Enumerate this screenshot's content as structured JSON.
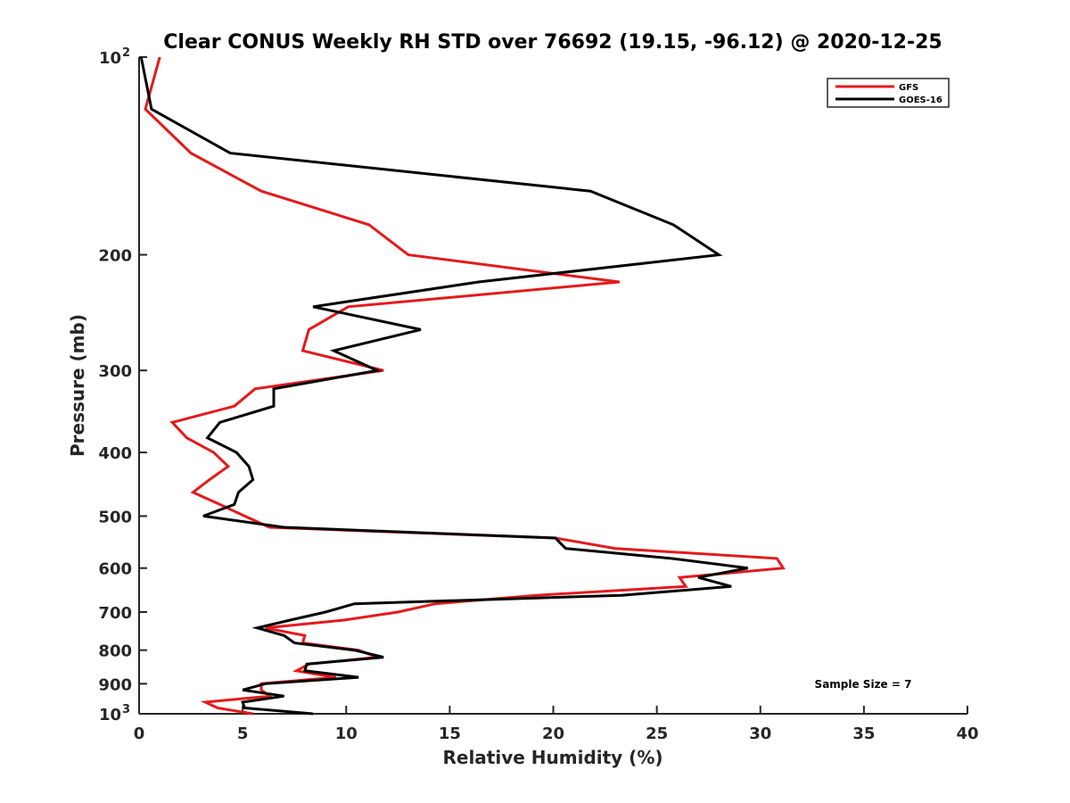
{
  "chart_data": {
    "type": "line",
    "title": "Clear CONUS Weekly RH STD over 76692 (19.15, -96.12) @ 2020-12-25",
    "xlabel": "Relative Humidity (%)",
    "ylabel": "Pressure (mb)",
    "xlim": [
      0,
      40
    ],
    "ylim": [
      100,
      1000
    ],
    "y_scale": "log",
    "y_reversed": true,
    "x_ticks": [
      0,
      5,
      10,
      15,
      20,
      25,
      30,
      35,
      40
    ],
    "x_tick_labels": [
      "0",
      "5",
      "10",
      "15",
      "20",
      "25",
      "30",
      "35",
      "40"
    ],
    "y_ticks": [
      100,
      200,
      300,
      400,
      500,
      600,
      700,
      800,
      900,
      1000
    ],
    "y_tick_labels": [
      "10",
      "200",
      "300",
      "400",
      "500",
      "600",
      "700",
      "800",
      "900",
      "10"
    ],
    "y_tick_exponents": [
      "2",
      "",
      "",
      "",
      "",
      "",
      "",
      "",
      "",
      "3"
    ],
    "grid": false,
    "legend_position": "top-right",
    "annotation": "Sample Size = 7",
    "pressure_levels": [
      100,
      120,
      140,
      160,
      180,
      200,
      220,
      240,
      260,
      280,
      300,
      320,
      340,
      360,
      380,
      400,
      420,
      440,
      460,
      480,
      500,
      520,
      540,
      560,
      580,
      600,
      620,
      640,
      660,
      680,
      700,
      720,
      740,
      760,
      780,
      800,
      820,
      840,
      860,
      880,
      900,
      920,
      940,
      960,
      980,
      1000
    ],
    "series": [
      {
        "name": "GFS",
        "color": "#e41a1c",
        "values": [
          1.0,
          0.3,
          2.5,
          5.9,
          11.1,
          13.0,
          23.2,
          10.1,
          8.2,
          7.9,
          11.8,
          5.6,
          4.6,
          1.6,
          2.3,
          3.6,
          4.3,
          3.4,
          2.6,
          3.9,
          5.1,
          6.3,
          20.1,
          23.0,
          30.8,
          31.1,
          26.1,
          26.4,
          19.2,
          14.3,
          12.5,
          9.9,
          6.1,
          8.0,
          7.9,
          10.6,
          11.5,
          8.2,
          7.6,
          9.5,
          5.9,
          5.9,
          6.3,
          3.2,
          3.8,
          5.5
        ]
      },
      {
        "name": "GOES-16",
        "color": "#000000",
        "values": [
          0.1,
          0.6,
          4.4,
          21.8,
          25.8,
          28.0,
          16.4,
          8.4,
          13.6,
          9.4,
          11.5,
          6.5,
          6.5,
          3.9,
          3.3,
          4.7,
          5.3,
          5.5,
          4.8,
          4.6,
          3.1,
          7.0,
          20.1,
          20.6,
          25.7,
          29.4,
          27.0,
          28.6,
          23.3,
          10.4,
          9.0,
          7.3,
          5.7,
          7.0,
          7.5,
          10.4,
          11.8,
          8.1,
          8.0,
          10.6,
          6.1,
          5.0,
          7.0,
          5.0,
          5.1,
          8.4
        ]
      }
    ]
  }
}
